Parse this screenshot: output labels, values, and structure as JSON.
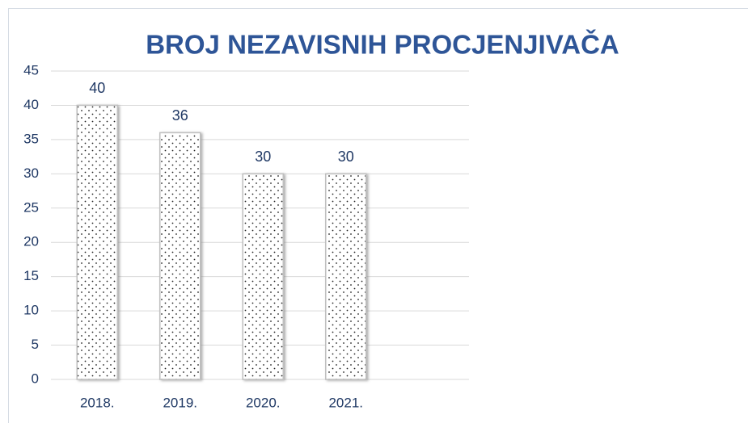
{
  "chart_data": {
    "type": "bar",
    "title": "BROJ NEZAVISNIH PROCJENJIVAČA",
    "categories": [
      "2018.",
      "2019.",
      "2020.",
      "2021."
    ],
    "values": [
      40,
      36,
      30,
      30
    ],
    "color": "#ffffff",
    "ylim": [
      0,
      45
    ],
    "yticks": [
      0,
      5,
      10,
      15,
      20,
      25,
      30,
      35,
      40,
      45
    ],
    "grid": true
  }
}
